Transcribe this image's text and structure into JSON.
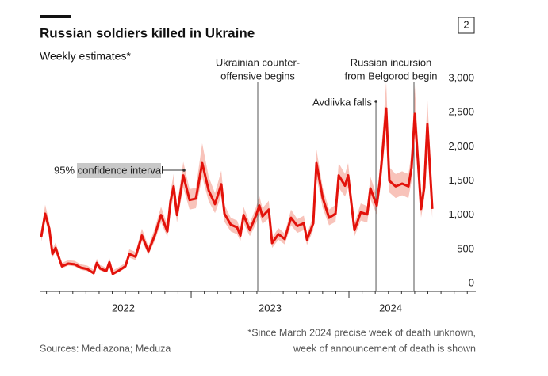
{
  "chart_data": {
    "type": "line",
    "title": "Russian soldiers killed in Ukraine",
    "subtitle": "Weekly estimates*",
    "badge": "2",
    "x": [
      2022.05,
      2022.075,
      2022.101,
      2022.121,
      2022.141,
      2022.181,
      2022.221,
      2022.261,
      2022.302,
      2022.342,
      2022.382,
      2022.402,
      2022.422,
      2022.462,
      2022.482,
      2022.503,
      2022.543,
      2022.583,
      2022.608,
      2022.648,
      2022.688,
      2022.729,
      2022.769,
      2022.809,
      2022.849,
      2022.869,
      2022.889,
      2022.91,
      2022.95,
      2022.99,
      2023.03,
      2023.07,
      2023.111,
      2023.151,
      2023.191,
      2023.211,
      2023.251,
      2023.291,
      2023.312,
      2023.332,
      2023.372,
      2023.412,
      2023.432,
      2023.452,
      2023.492,
      2023.513,
      2023.553,
      2023.593,
      2023.633,
      2023.673,
      2023.714,
      2023.734,
      2023.774,
      2023.794,
      2023.834,
      2023.874,
      2023.915,
      2023.935,
      2023.975,
      2023.995,
      2024.035,
      2024.075,
      2024.116,
      2024.136,
      2024.176,
      2024.196,
      2024.216,
      2024.236,
      2024.256,
      2024.296,
      2024.337,
      2024.377,
      2024.397,
      2024.417,
      2024.437,
      2024.457,
      2024.477,
      2024.497,
      2024.518,
      2024.528
    ],
    "series": [
      {
        "name": "Weekly estimate",
        "color": "#e3120b",
        "values": [
          680,
          1020,
          800,
          430,
          520,
          250,
          290,
          280,
          230,
          210,
          150,
          300,
          220,
          180,
          310,
          140,
          190,
          250,
          430,
          390,
          700,
          470,
          700,
          1000,
          760,
          1200,
          1420,
          1000,
          1580,
          1220,
          1240,
          1760,
          1360,
          1160,
          1450,
          1020,
          860,
          820,
          700,
          1000,
          780,
          1000,
          1140,
          980,
          1080,
          590,
          720,
          650,
          960,
          840,
          880,
          640,
          880,
          1760,
          1250,
          960,
          1020,
          1580,
          1430,
          1580,
          780,
          1040,
          1010,
          1390,
          1140,
          1500,
          2000,
          2560,
          1500,
          1420,
          1460,
          1420,
          1700,
          2480,
          1800,
          1090,
          1400,
          2330,
          1500,
          1090
        ]
      }
    ],
    "band": {
      "color": "#f8c3ba",
      "lower": [
        610,
        920,
        720,
        380,
        460,
        220,
        260,
        250,
        200,
        180,
        130,
        260,
        190,
        160,
        270,
        120,
        170,
        220,
        380,
        340,
        620,
        420,
        620,
        890,
        680,
        1070,
        1260,
        890,
        1400,
        1080,
        1100,
        1560,
        1200,
        1030,
        1280,
        900,
        760,
        720,
        620,
        880,
        690,
        880,
        1010,
        870,
        950,
        520,
        640,
        570,
        850,
        740,
        780,
        560,
        780,
        1560,
        1100,
        850,
        900,
        1400,
        1270,
        1400,
        690,
        920,
        890,
        1230,
        1010,
        1330,
        1770,
        2250,
        1330,
        1250,
        1290,
        1250,
        1500,
        2180,
        1590,
        960,
        1240,
        2050,
        1330,
        960
      ],
      "upper": [
        760,
        1150,
        900,
        500,
        600,
        300,
        340,
        330,
        280,
        260,
        200,
        360,
        270,
        230,
        370,
        190,
        240,
        300,
        500,
        460,
        800,
        540,
        800,
        1120,
        860,
        1340,
        1600,
        1120,
        1780,
        1380,
        1400,
        2050,
        1560,
        1320,
        1650,
        1150,
        960,
        920,
        790,
        1120,
        880,
        1120,
        1280,
        1100,
        1210,
        670,
        810,
        730,
        1080,
        940,
        990,
        720,
        990,
        1960,
        1400,
        1080,
        1150,
        1760,
        1600,
        1760,
        880,
        1170,
        1130,
        1560,
        1280,
        1680,
        2280,
        2950,
        1700,
        1600,
        1640,
        1600,
        1920,
        2900,
        2100,
        1300,
        1620,
        2700,
        1750,
        1250
      ]
    },
    "band_label": "95% confidence interval",
    "events": [
      {
        "x": 2023.422,
        "label": [
          "Ukrainian counter-",
          "offensive begins"
        ]
      },
      {
        "x": 2024.171,
        "label": [
          "Avdiivka falls"
        ]
      },
      {
        "x": 2024.412,
        "label": [
          "Russian incursion",
          "from Belgorod begin"
        ]
      }
    ],
    "xlim": [
      2022.04,
      2024.804
    ],
    "xticks": [
      {
        "value": 2022,
        "label": "2022"
      },
      {
        "value": 2023,
        "label": "2023"
      },
      {
        "value": 2024,
        "label": "2024"
      }
    ],
    "ylim": [
      0,
      3000
    ],
    "yticks": [
      0,
      {
        "value": 500,
        "label": "500"
      },
      {
        "value": 1000,
        "label": "1,000"
      },
      {
        "value": 1500,
        "label": "1,500"
      },
      {
        "value": 2000,
        "label": "2,000"
      },
      {
        "value": 2500,
        "label": "2,500"
      },
      {
        "value": 3000,
        "label": "3,000"
      }
    ],
    "grid": false,
    "footnote": [
      "*Since March 2024 precise week of death unknown,",
      "week of announcement of death is shown"
    ],
    "source": "Sources: Mediazona; Meduza"
  }
}
